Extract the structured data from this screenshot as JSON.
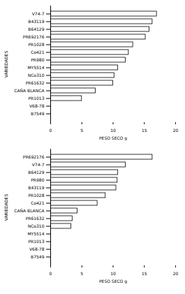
{
  "chart_data": [
    {
      "type": "bar",
      "orientation": "horizontal",
      "categories": [
        "V74-7",
        "B43119",
        "B64129",
        "PR692176",
        "PR1028",
        "Co421",
        "PR980",
        "MY5514",
        "NCo310",
        "PR61632",
        "CAÑA BLANCA",
        "PR1013",
        "V68-78",
        "B7549"
      ],
      "values": [
        17.0,
        16.3,
        15.8,
        15.2,
        13.2,
        12.5,
        12.0,
        10.8,
        10.2,
        10.0,
        7.2,
        5.0,
        0,
        0
      ],
      "color": "#ffffff",
      "xlabel": "PESO SECO g",
      "ylabel": "VARIEDADES",
      "xlim": [
        0,
        20
      ],
      "xticks": [
        0,
        5,
        10,
        15,
        20
      ],
      "grid": false
    },
    {
      "type": "bar",
      "orientation": "horizontal",
      "categories": [
        "PR692176",
        "V74-7",
        "B64129",
        "PR980",
        "B43119",
        "PR1028",
        "Co421",
        "CAÑA BLANCA",
        "PR61632",
        "NCo310",
        "MY5514",
        "PR1013",
        "V68-78",
        "B7549"
      ],
      "values": [
        16.3,
        12.0,
        10.8,
        10.7,
        10.5,
        8.8,
        7.5,
        4.3,
        3.5,
        3.3,
        0,
        0,
        0,
        0
      ],
      "color": "#ffffff",
      "xlabel": "PESO SECO g",
      "ylabel": "VARIEDADES",
      "xlim": [
        0,
        20
      ],
      "xticks": [
        0,
        5,
        10,
        15,
        20
      ],
      "grid": false
    }
  ]
}
